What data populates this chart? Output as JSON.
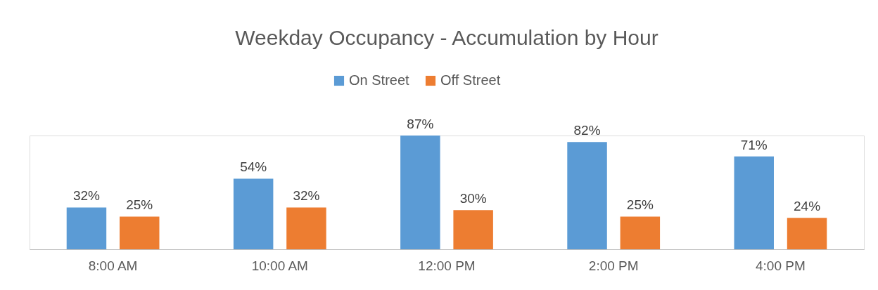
{
  "chart_data": {
    "type": "bar",
    "title": "Weekday Occupancy - Accumulation by Hour",
    "categories": [
      "8:00 AM",
      "10:00 AM",
      "12:00 PM",
      "2:00 PM",
      "4:00 PM"
    ],
    "legend": "top",
    "grid": false,
    "series": [
      {
        "name": "On Street",
        "color": "#5b9bd5",
        "values": [
          32,
          54,
          87,
          82,
          71
        ],
        "value_labels": [
          "32%",
          "54%",
          "87%",
          "82%",
          "71%"
        ]
      },
      {
        "name": "Off Street",
        "color": "#ed7d31",
        "values": [
          25,
          32,
          30,
          25,
          24
        ],
        "value_labels": [
          "25%",
          "32%",
          "30%",
          "25%",
          "24%"
        ]
      }
    ]
  }
}
